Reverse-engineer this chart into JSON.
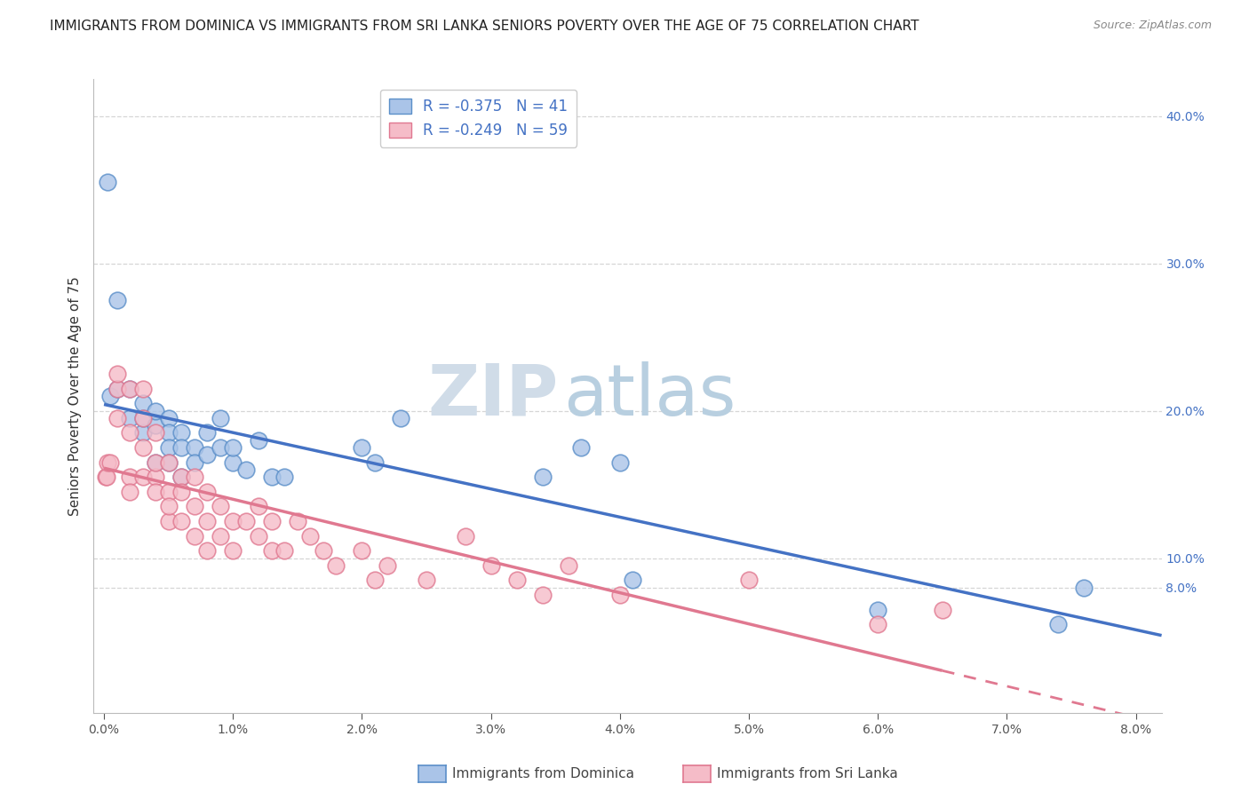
{
  "title": "IMMIGRANTS FROM DOMINICA VS IMMIGRANTS FROM SRI LANKA SENIORS POVERTY OVER THE AGE OF 75 CORRELATION CHART",
  "source": "Source: ZipAtlas.com",
  "ylabel": "Seniors Poverty Over the Age of 75",
  "dominica_color": "#aac4e8",
  "dominica_edge": "#5b8fc9",
  "dominica_line": "#4472c4",
  "srilanka_color": "#f5bcc8",
  "srilanka_edge": "#e07890",
  "srilanka_line": "#e07890",
  "dominica_R": -0.375,
  "dominica_N": 41,
  "srilanka_R": -0.249,
  "srilanka_N": 59,
  "watermark_zip": "ZIP",
  "watermark_atlas": "atlas",
  "xlim": [
    -0.0008,
    0.082
  ],
  "ylim": [
    -0.005,
    0.425
  ],
  "right_yticks": [
    0.08,
    0.1,
    0.2,
    0.3,
    0.4
  ],
  "right_yticklabels": [
    "8.0%",
    "10.0%",
    "20.0%",
    "30.0%",
    "40.0%"
  ],
  "dominica_x": [
    0.0003,
    0.0005,
    0.001,
    0.001,
    0.002,
    0.002,
    0.003,
    0.003,
    0.003,
    0.004,
    0.004,
    0.004,
    0.005,
    0.005,
    0.005,
    0.005,
    0.006,
    0.006,
    0.006,
    0.007,
    0.007,
    0.008,
    0.008,
    0.009,
    0.009,
    0.01,
    0.01,
    0.011,
    0.012,
    0.013,
    0.014,
    0.02,
    0.021,
    0.023,
    0.034,
    0.037,
    0.04,
    0.041,
    0.06,
    0.074,
    0.076
  ],
  "dominica_y": [
    0.355,
    0.21,
    0.215,
    0.275,
    0.195,
    0.215,
    0.185,
    0.205,
    0.195,
    0.19,
    0.2,
    0.165,
    0.195,
    0.185,
    0.175,
    0.165,
    0.185,
    0.175,
    0.155,
    0.175,
    0.165,
    0.17,
    0.185,
    0.195,
    0.175,
    0.165,
    0.175,
    0.16,
    0.18,
    0.155,
    0.155,
    0.175,
    0.165,
    0.195,
    0.155,
    0.175,
    0.165,
    0.085,
    0.065,
    0.055,
    0.08
  ],
  "srilanka_x": [
    0.0001,
    0.0002,
    0.0003,
    0.0005,
    0.001,
    0.001,
    0.001,
    0.002,
    0.002,
    0.002,
    0.002,
    0.003,
    0.003,
    0.003,
    0.003,
    0.004,
    0.004,
    0.004,
    0.004,
    0.005,
    0.005,
    0.005,
    0.005,
    0.006,
    0.006,
    0.006,
    0.007,
    0.007,
    0.007,
    0.008,
    0.008,
    0.008,
    0.009,
    0.009,
    0.01,
    0.01,
    0.011,
    0.012,
    0.012,
    0.013,
    0.013,
    0.014,
    0.015,
    0.016,
    0.017,
    0.018,
    0.02,
    0.021,
    0.022,
    0.025,
    0.028,
    0.03,
    0.032,
    0.034,
    0.036,
    0.04,
    0.05,
    0.06,
    0.065
  ],
  "srilanka_y": [
    0.155,
    0.155,
    0.165,
    0.165,
    0.215,
    0.195,
    0.225,
    0.155,
    0.185,
    0.215,
    0.145,
    0.155,
    0.175,
    0.195,
    0.215,
    0.155,
    0.145,
    0.185,
    0.165,
    0.145,
    0.125,
    0.165,
    0.135,
    0.155,
    0.125,
    0.145,
    0.135,
    0.115,
    0.155,
    0.145,
    0.125,
    0.105,
    0.135,
    0.115,
    0.125,
    0.105,
    0.125,
    0.115,
    0.135,
    0.105,
    0.125,
    0.105,
    0.125,
    0.115,
    0.105,
    0.095,
    0.105,
    0.085,
    0.095,
    0.085,
    0.115,
    0.095,
    0.085,
    0.075,
    0.095,
    0.075,
    0.085,
    0.055,
    0.065
  ],
  "legend_label_dominica": "Immigrants from Dominica",
  "legend_label_srilanka": "Immigrants from Sri Lanka",
  "background_color": "#ffffff",
  "grid_color": "#cccccc"
}
